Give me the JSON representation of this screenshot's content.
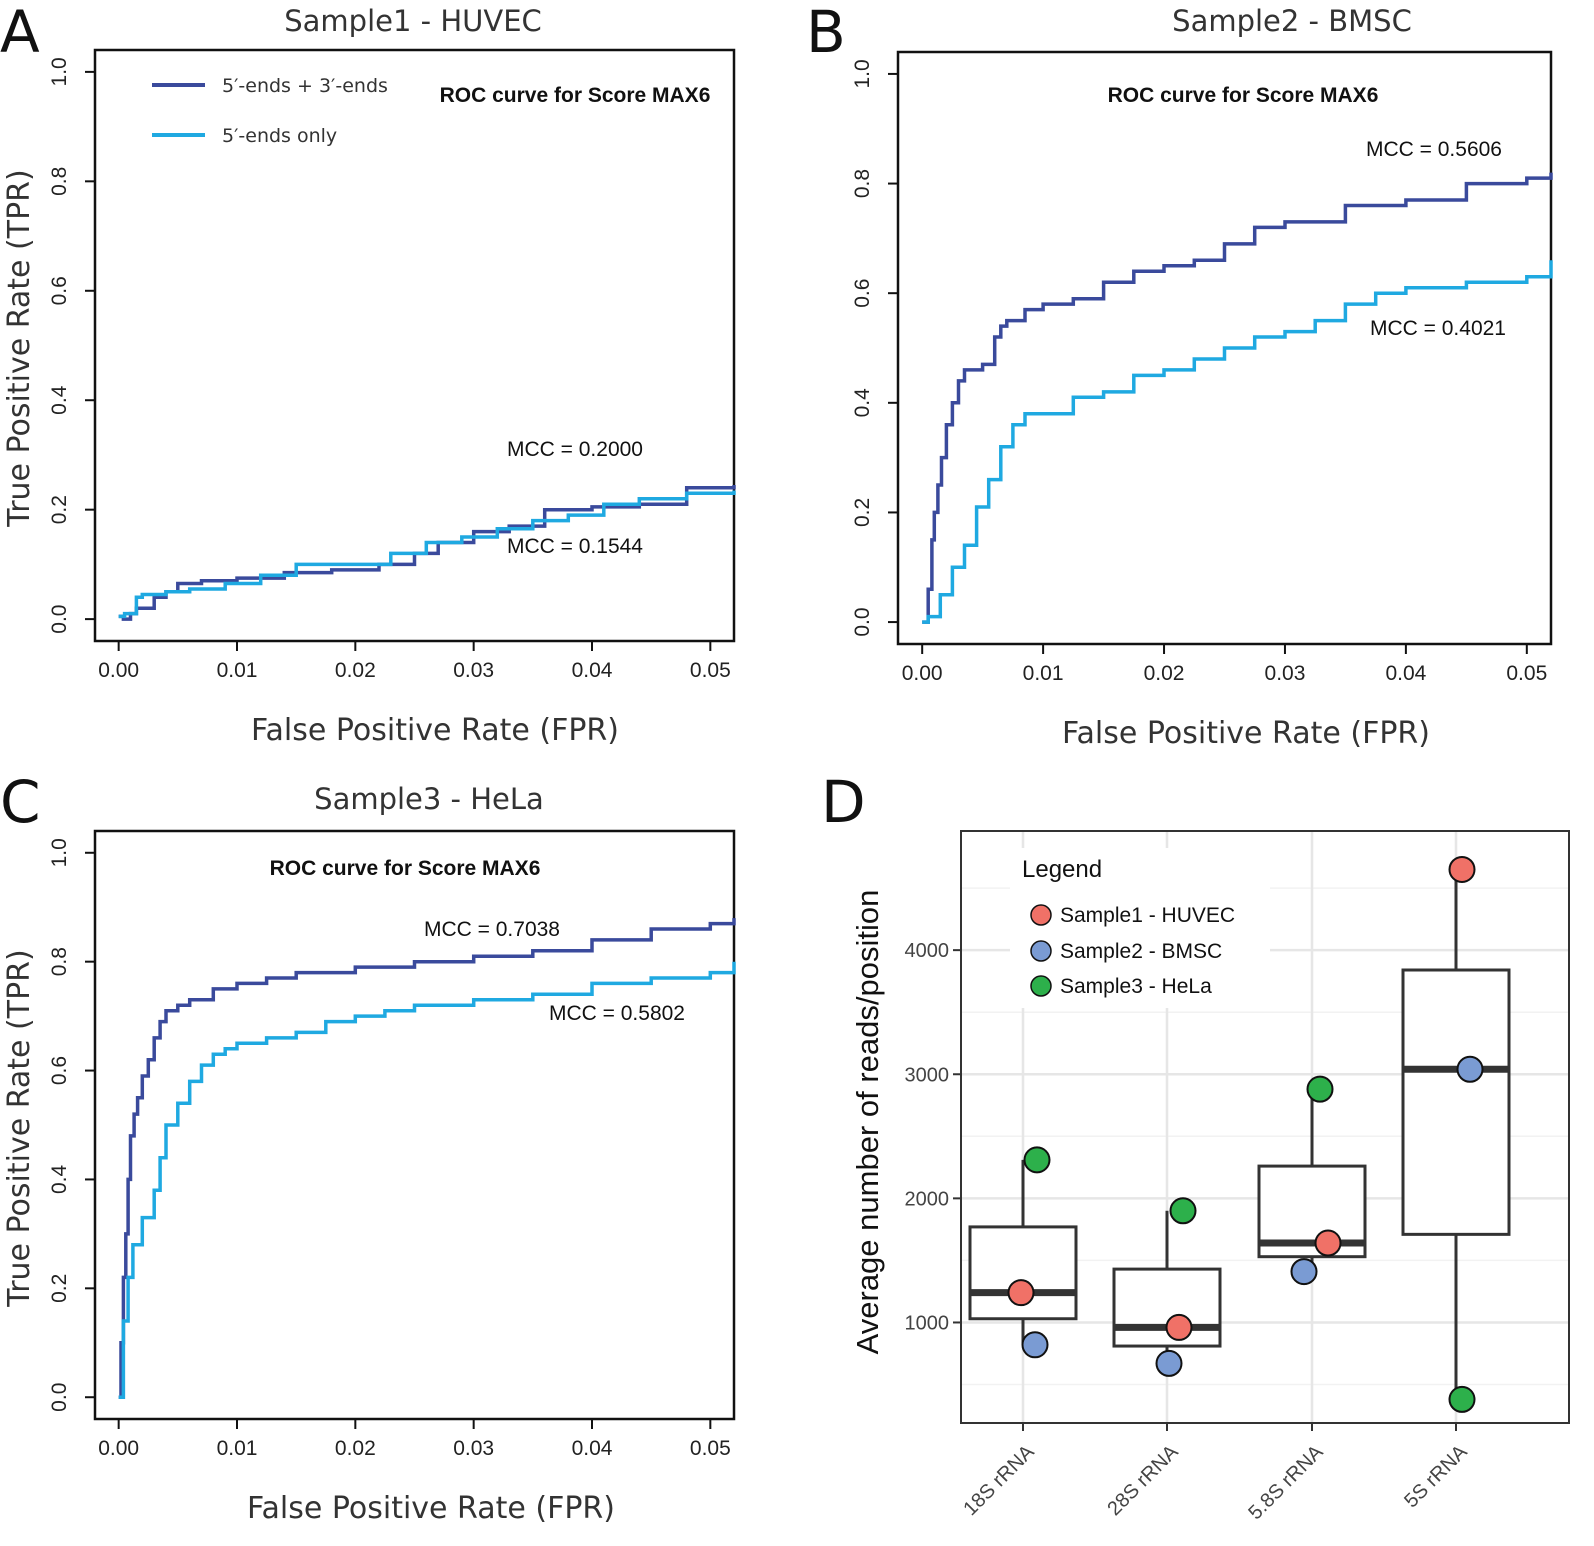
{
  "colors": {
    "combined": "#3a4a9c",
    "five_only": "#1fa9e1",
    "s1": "#f07167",
    "s2": "#7a9bd3",
    "s3": "#2db04b"
  },
  "legend": {
    "combined": "5′-ends + 3′-ends",
    "five_only": "5′-ends only"
  },
  "chart_data": [
    {
      "panel": "A",
      "type": "line",
      "title": "Sample1 - HUVEC",
      "subtitle": "ROC curve for Score MAX6",
      "xlabel": "False Positive Rate (FPR)",
      "ylabel": "True Positive Rate (TPR)",
      "xlim": [
        -0.002,
        0.052
      ],
      "ylim": [
        -0.04,
        1.04
      ],
      "xticks": [
        "0.00",
        "0.01",
        "0.02",
        "0.03",
        "0.04",
        "0.05"
      ],
      "yticks": [
        "0.0",
        "0.2",
        "0.4",
        "0.6",
        "0.8",
        "1.0"
      ],
      "series": [
        {
          "name": "5′-ends + 3′-ends",
          "color_key": "combined",
          "x": [
            0,
            0.0004,
            0.001,
            0.0015,
            0.002,
            0.003,
            0.004,
            0.005,
            0.007,
            0.01,
            0.014,
            0.018,
            0.022,
            0.025,
            0.027,
            0.03,
            0.033,
            0.036,
            0.04,
            0.044,
            0.048,
            0.052
          ],
          "y": [
            0.005,
            0.0,
            0.01,
            0.02,
            0.02,
            0.04,
            0.05,
            0.065,
            0.07,
            0.075,
            0.085,
            0.09,
            0.1,
            0.12,
            0.14,
            0.16,
            0.17,
            0.2,
            0.205,
            0.21,
            0.24,
            0.245
          ]
        },
        {
          "name": "5′-ends only",
          "color_key": "five_only",
          "x": [
            0,
            0.0005,
            0.0015,
            0.002,
            0.004,
            0.006,
            0.009,
            0.012,
            0.015,
            0.02,
            0.023,
            0.026,
            0.029,
            0.032,
            0.035,
            0.038,
            0.041,
            0.044,
            0.048,
            0.052
          ],
          "y": [
            0.005,
            0.01,
            0.04,
            0.045,
            0.05,
            0.055,
            0.065,
            0.08,
            0.1,
            0.1,
            0.12,
            0.14,
            0.15,
            0.165,
            0.18,
            0.19,
            0.21,
            0.22,
            0.23,
            0.235
          ]
        }
      ],
      "annotations": [
        "MCC = 0.2000",
        "MCC = 0.1544"
      ]
    },
    {
      "panel": "B",
      "type": "line",
      "title": "Sample2 - BMSC",
      "subtitle": "ROC curve for Score MAX6",
      "xlabel": "False Positive Rate (FPR)",
      "ylabel": "",
      "xlim": [
        -0.002,
        0.052
      ],
      "ylim": [
        -0.04,
        1.04
      ],
      "xticks": [
        "0.00",
        "0.01",
        "0.02",
        "0.03",
        "0.04",
        "0.05"
      ],
      "yticks": [
        "0.0",
        "0.2",
        "0.4",
        "0.6",
        "0.8",
        "1.0"
      ],
      "series": [
        {
          "name": "5′-ends + 3′-ends",
          "color_key": "combined",
          "x": [
            0,
            0.0005,
            0.0008,
            0.001,
            0.0013,
            0.0016,
            0.002,
            0.0025,
            0.003,
            0.0035,
            0.004,
            0.005,
            0.006,
            0.0065,
            0.007,
            0.0085,
            0.01,
            0.0125,
            0.015,
            0.0175,
            0.02,
            0.0225,
            0.025,
            0.0275,
            0.03,
            0.035,
            0.04,
            0.045,
            0.05,
            0.052
          ],
          "y": [
            0.0,
            0.06,
            0.15,
            0.2,
            0.25,
            0.3,
            0.36,
            0.4,
            0.44,
            0.46,
            0.46,
            0.47,
            0.52,
            0.54,
            0.55,
            0.57,
            0.58,
            0.59,
            0.62,
            0.64,
            0.65,
            0.66,
            0.69,
            0.72,
            0.73,
            0.76,
            0.77,
            0.8,
            0.81,
            0.82
          ]
        },
        {
          "name": "5′-ends only",
          "color_key": "five_only",
          "x": [
            0,
            0.0005,
            0.0015,
            0.0025,
            0.0035,
            0.0045,
            0.0055,
            0.0065,
            0.0075,
            0.0085,
            0.01,
            0.0125,
            0.015,
            0.0175,
            0.02,
            0.0225,
            0.025,
            0.0275,
            0.03,
            0.0325,
            0.035,
            0.0375,
            0.04,
            0.045,
            0.05,
            0.052
          ],
          "y": [
            0.0,
            0.01,
            0.05,
            0.1,
            0.14,
            0.21,
            0.26,
            0.32,
            0.36,
            0.38,
            0.38,
            0.41,
            0.42,
            0.45,
            0.46,
            0.48,
            0.5,
            0.52,
            0.53,
            0.55,
            0.58,
            0.6,
            0.61,
            0.62,
            0.63,
            0.66
          ]
        }
      ],
      "annotations": [
        "MCC = 0.5606",
        "MCC = 0.4021"
      ]
    },
    {
      "panel": "C",
      "type": "line",
      "title": "Sample3 - HeLa",
      "subtitle": "ROC curve for Score MAX6",
      "xlabel": "False Positive Rate (FPR)",
      "ylabel": "True Positive Rate (TPR)",
      "xlim": [
        -0.002,
        0.052
      ],
      "ylim": [
        -0.04,
        1.04
      ],
      "xticks": [
        "0.00",
        "0.01",
        "0.02",
        "0.03",
        "0.04",
        "0.05"
      ],
      "yticks": [
        "0.0",
        "0.2",
        "0.4",
        "0.6",
        "0.8",
        "1.0"
      ],
      "series": [
        {
          "name": "5′-ends + 3′-ends",
          "color_key": "combined",
          "x": [
            0,
            0.0002,
            0.0004,
            0.0006,
            0.0008,
            0.001,
            0.0013,
            0.0016,
            0.002,
            0.0025,
            0.003,
            0.0035,
            0.004,
            0.005,
            0.006,
            0.008,
            0.01,
            0.0125,
            0.015,
            0.02,
            0.025,
            0.03,
            0.035,
            0.04,
            0.045,
            0.05,
            0.052
          ],
          "y": [
            0.0,
            0.1,
            0.22,
            0.3,
            0.4,
            0.48,
            0.52,
            0.55,
            0.59,
            0.62,
            0.66,
            0.69,
            0.71,
            0.72,
            0.73,
            0.75,
            0.76,
            0.77,
            0.78,
            0.79,
            0.8,
            0.81,
            0.82,
            0.84,
            0.86,
            0.87,
            0.88
          ]
        },
        {
          "name": "5′-ends only",
          "color_key": "five_only",
          "x": [
            0,
            0.0004,
            0.0008,
            0.0012,
            0.002,
            0.003,
            0.0035,
            0.004,
            0.005,
            0.006,
            0.007,
            0.008,
            0.009,
            0.01,
            0.0125,
            0.015,
            0.0175,
            0.02,
            0.0225,
            0.025,
            0.03,
            0.035,
            0.04,
            0.045,
            0.05,
            0.052
          ],
          "y": [
            0.0,
            0.14,
            0.22,
            0.28,
            0.33,
            0.38,
            0.44,
            0.5,
            0.54,
            0.58,
            0.61,
            0.63,
            0.64,
            0.65,
            0.66,
            0.67,
            0.69,
            0.7,
            0.71,
            0.72,
            0.73,
            0.74,
            0.76,
            0.77,
            0.78,
            0.8
          ]
        }
      ],
      "annotations": [
        "MCC = 0.7038",
        "MCC = 0.5802"
      ]
    },
    {
      "panel": "D",
      "type": "box",
      "ylabel": "Average number of reads/position",
      "ylim": [
        190,
        4960
      ],
      "yticks": [
        1000,
        2000,
        3000,
        4000
      ],
      "categories": [
        "18S rRNA",
        "28S rRNA",
        "5.8S rRNA",
        "5S rRNA"
      ],
      "boxes": [
        {
          "q1": 1030,
          "median": 1240,
          "q3": 1770,
          "whisker_low": 820,
          "whisker_high": 2310
        },
        {
          "q1": 810,
          "median": 960,
          "q3": 1430,
          "whisker_low": 670,
          "whisker_high": 1900
        },
        {
          "q1": 1530,
          "median": 1640,
          "q3": 2260,
          "whisker_low": 1410,
          "whisker_high": 2880
        },
        {
          "q1": 1710,
          "median": 3040,
          "q3": 3840,
          "whisker_low": 380,
          "whisker_high": 4650
        }
      ],
      "legend_title": "Legend",
      "series": [
        {
          "name": "Sample1 - HUVEC",
          "color_key": "s1",
          "values": [
            1240,
            960,
            1640,
            4650
          ]
        },
        {
          "name": "Sample2 - BMSC",
          "color_key": "s2",
          "values": [
            820,
            670,
            1410,
            3040
          ]
        },
        {
          "name": "Sample3 - HeLa",
          "color_key": "s3",
          "values": [
            2310,
            1900,
            2880,
            380
          ]
        }
      ]
    }
  ]
}
